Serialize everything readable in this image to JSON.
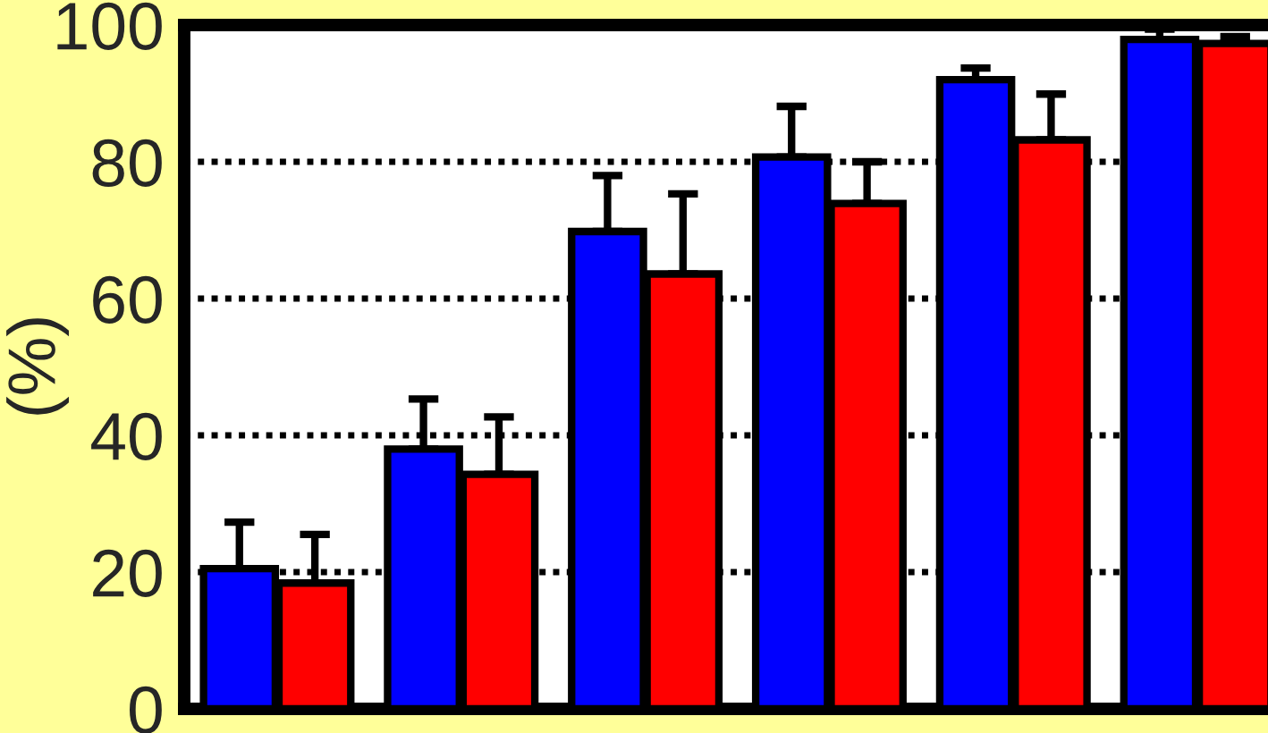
{
  "chart_data": {
    "type": "bar",
    "ylabel": "(%)",
    "categories": [
      null,
      null,
      null,
      null,
      null,
      null
    ],
    "series": [
      {
        "color": "#0000ff",
        "values": [
          20.5,
          38,
          69.8,
          80.7,
          92,
          97.9
        ],
        "errors": [
          [
            20.5,
            27.3
          ],
          [
            38,
            45.3
          ],
          [
            69.8,
            78
          ],
          [
            80.7,
            88.1
          ],
          [
            92,
            93.7
          ],
          [
            97.9,
            99.4
          ]
        ]
      },
      {
        "color": "#ff0000",
        "values": [
          18.4,
          34.3,
          63.6,
          73.9,
          83.2,
          97.3
        ],
        "errors": [
          [
            18.4,
            25.5
          ],
          [
            34.3,
            42.7
          ],
          [
            63.6,
            75.3
          ],
          [
            73.9,
            80
          ],
          [
            83.2,
            89.9
          ],
          [
            97.3,
            98.3
          ]
        ]
      }
    ],
    "ylim": [
      0,
      100
    ],
    "yticks": [
      0,
      20,
      40,
      60,
      80,
      100
    ],
    "grid": "y",
    "legend": false
  }
}
